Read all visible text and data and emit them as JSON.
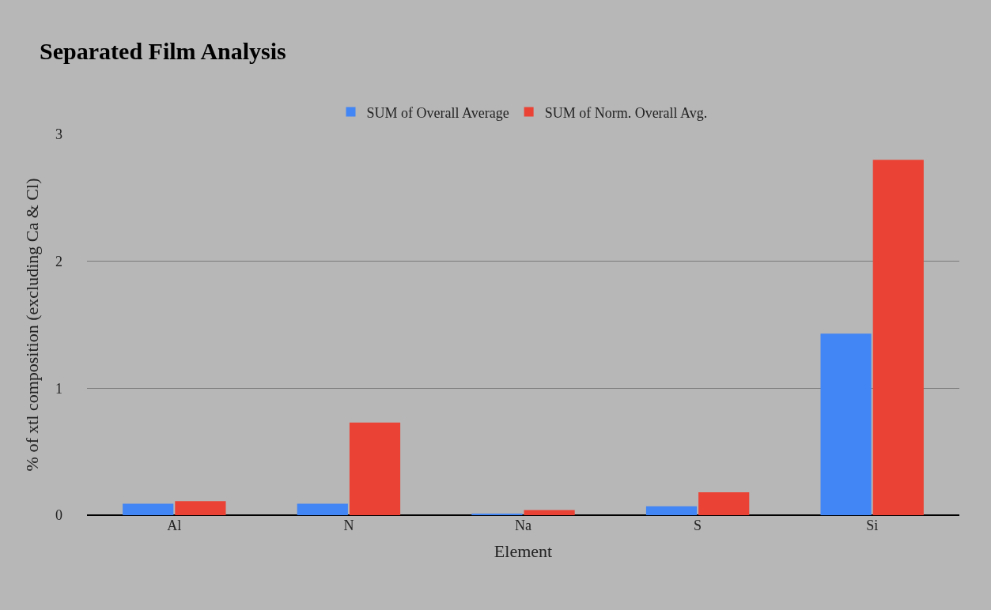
{
  "chart_data": {
    "type": "bar",
    "title": "Separated Film Analysis",
    "xlabel": "Element",
    "ylabel": "% of xtl composition (excluding Ca & Cl)",
    "categories": [
      "Al",
      "N",
      "Na",
      "S",
      "Si"
    ],
    "series": [
      {
        "name": "SUM of Overall Average",
        "color": "#4285f4",
        "values": [
          0.09,
          0.09,
          0.01,
          0.07,
          1.43
        ]
      },
      {
        "name": "SUM of Norm. Overall Avg.",
        "color": "#ea4335",
        "values": [
          0.11,
          0.73,
          0.04,
          0.18,
          2.8
        ]
      }
    ],
    "ylim": [
      0,
      3
    ],
    "yticks": [
      0,
      1,
      2,
      3
    ],
    "grid": "y",
    "legend": "top"
  }
}
